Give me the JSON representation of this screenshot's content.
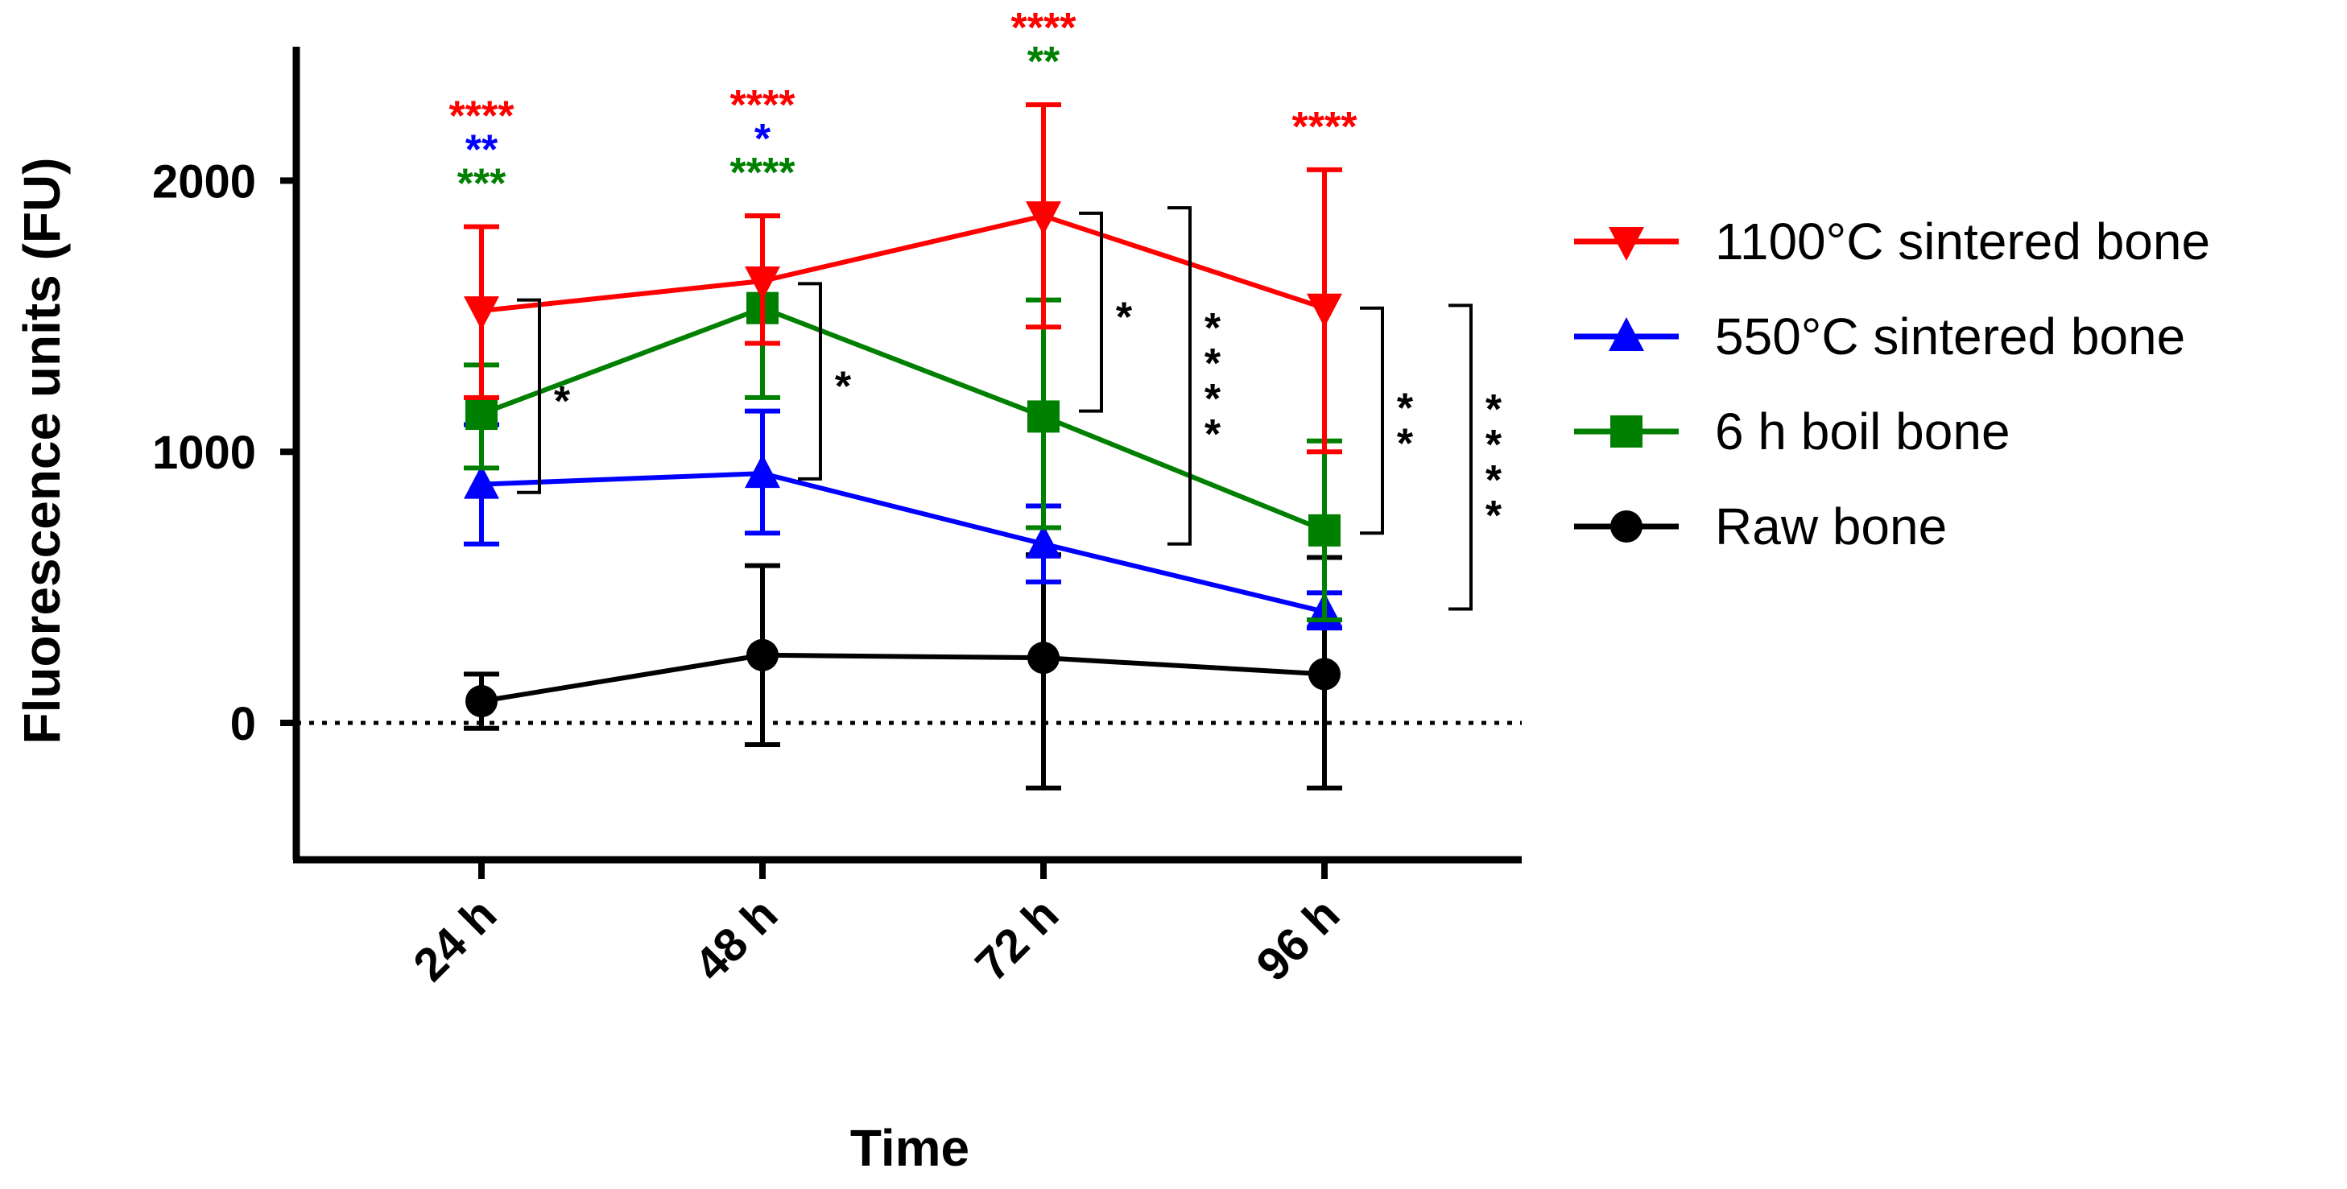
{
  "chart_data": {
    "type": "line",
    "title": "",
    "xlabel": "Time",
    "ylabel": "Fluorescence units (FU)",
    "categories": [
      "24 h",
      "48 h",
      "72 h",
      "96 h"
    ],
    "ylim": [
      -500,
      2500
    ],
    "yticks": [
      0,
      1000,
      2000
    ],
    "reference_line": 0,
    "legend_position": "right",
    "series": [
      {
        "name": "1100°C sintered bone",
        "color": "#FF0000",
        "marker": "triangle-down",
        "values": [
          1520,
          1630,
          1870,
          1530
        ],
        "err_upper": [
          1830,
          1870,
          2280,
          2040
        ],
        "err_lower": [
          1200,
          1400,
          1460,
          1000
        ],
        "significance": [
          "****",
          "****",
          "****",
          "****"
        ]
      },
      {
        "name": "550°C sintered bone",
        "color": "#0000FF",
        "marker": "triangle-up",
        "values": [
          880,
          920,
          660,
          410
        ],
        "err_upper": [
          1100,
          1150,
          800,
          480
        ],
        "err_lower": [
          660,
          700,
          520,
          350
        ],
        "significance": [
          "**",
          "*",
          "",
          ""
        ]
      },
      {
        "name": "6 h boil bone",
        "color": "#008000",
        "marker": "square",
        "values": [
          1140,
          1530,
          1130,
          710
        ],
        "err_upper": [
          1320,
          1870,
          1560,
          1040
        ],
        "err_lower": [
          940,
          1200,
          720,
          380
        ],
        "significance": [
          "***",
          "****",
          "**",
          ""
        ]
      },
      {
        "name": "Raw bone",
        "color": "#000000",
        "marker": "circle",
        "values": [
          80,
          250,
          240,
          180
        ],
        "err_upper": [
          180,
          580,
          620,
          610
        ],
        "err_lower": [
          -20,
          -80,
          -240,
          -240
        ],
        "significance": [
          "",
          "",
          "",
          ""
        ]
      }
    ],
    "brackets": [
      {
        "label": "*",
        "from_value": 1560,
        "to_value": 850,
        "after_category": "24 h"
      },
      {
        "label": "*",
        "from_value": 1620,
        "to_value": 900,
        "after_category": "48 h"
      },
      {
        "label": "*",
        "from_value": 1880,
        "to_value": 1150,
        "after_category": "72 h",
        "offset": 1
      },
      {
        "label": "****",
        "from_value": 1900,
        "to_value": 660,
        "after_category": "72 h",
        "offset": 2
      },
      {
        "label": "**",
        "from_value": 1530,
        "to_value": 700,
        "after_category": "96 h",
        "offset": 1
      },
      {
        "label": "****",
        "from_value": 1540,
        "to_value": 420,
        "after_category": "96 h",
        "offset": 2
      }
    ]
  }
}
